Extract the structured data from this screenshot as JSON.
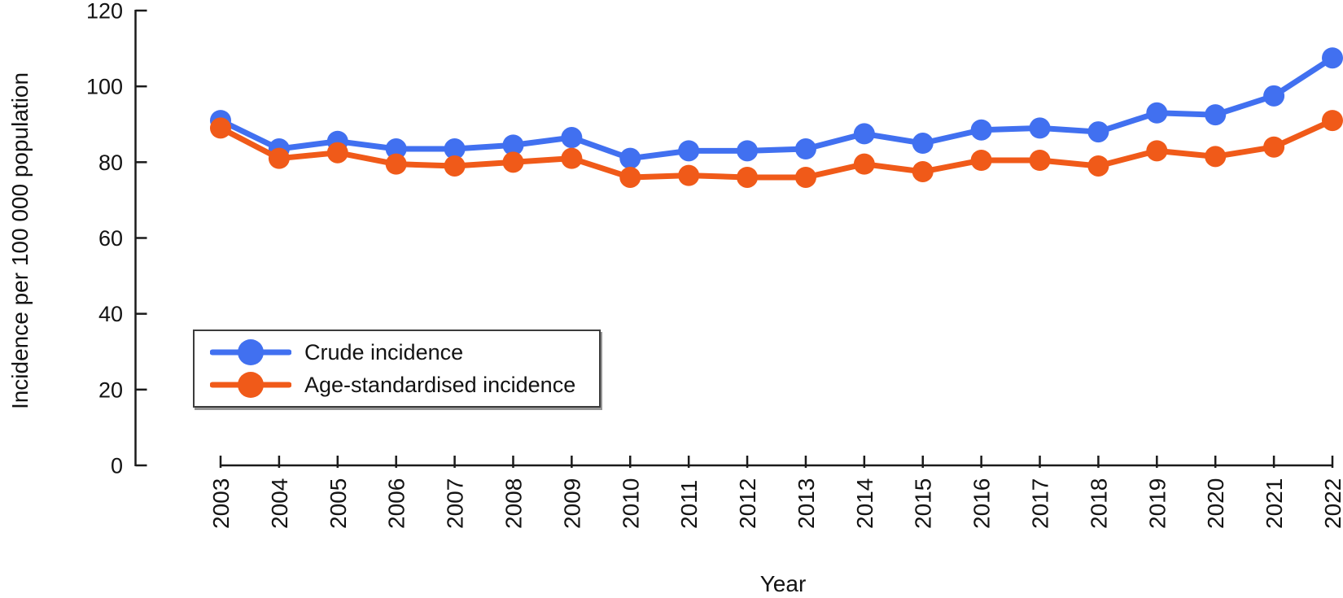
{
  "chart_data": {
    "type": "line",
    "title": "",
    "xlabel": "Year",
    "ylabel": "Incidence per 100 000 population",
    "x": [
      "2003",
      "2004",
      "2005",
      "2006",
      "2007",
      "2008",
      "2009",
      "2010",
      "2011",
      "2012",
      "2013",
      "2014",
      "2015",
      "2016",
      "2017",
      "2018",
      "2019",
      "2020",
      "2021",
      "2022"
    ],
    "series": [
      {
        "name": "Crude incidence",
        "color": "#4170f0",
        "marker": "circle",
        "values": [
          91,
          83.5,
          85.5,
          83.5,
          83.5,
          84.5,
          86.5,
          81,
          83,
          83,
          83.5,
          87.5,
          85,
          88.5,
          89,
          88,
          93,
          92.5,
          97.5,
          107.5
        ]
      },
      {
        "name": "Age-standardised incidence",
        "color": "#f05a19",
        "marker": "circle",
        "values": [
          89,
          81,
          82.5,
          79.5,
          79,
          80,
          81,
          76,
          76.5,
          76,
          76,
          79.5,
          77.5,
          80.5,
          80.5,
          79,
          83,
          81.5,
          84,
          91
        ]
      }
    ],
    "ylim": [
      0,
      120
    ],
    "yticks": [
      0,
      20,
      40,
      60,
      80,
      100,
      120
    ],
    "grid": false,
    "legend_position": "inside-lower-left",
    "axis_color": "#1b1b1b"
  }
}
